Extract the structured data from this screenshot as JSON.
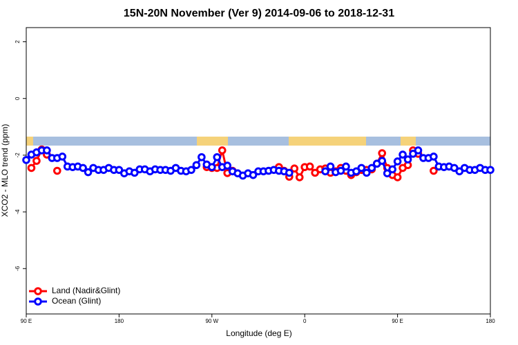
{
  "chart_data": {
    "type": "line",
    "title": "15N-20N November (Ver 9)   2014-09-06 to 2018-12-31",
    "x_label": "Longitude (deg E)",
    "y_label": "XCO2 - MLO trend (ppm)",
    "x": [
      90,
      95,
      100,
      105,
      110,
      115,
      120,
      125,
      130,
      135,
      140,
      145,
      150,
      155,
      160,
      165,
      170,
      175,
      180,
      185,
      190,
      195,
      200,
      205,
      210,
      215,
      220,
      225,
      230,
      235,
      240,
      245,
      250,
      255,
      260,
      265,
      270,
      275,
      280,
      285,
      290,
      295,
      300,
      305,
      310,
      315,
      320,
      325,
      330,
      335,
      340,
      345,
      350,
      355,
      360,
      365,
      370,
      375,
      380,
      385,
      390,
      395,
      400,
      405,
      410,
      415,
      420,
      425,
      430,
      435,
      440,
      445,
      450,
      455,
      460,
      465,
      470,
      475,
      480,
      485,
      490,
      495,
      500,
      505,
      510,
      515,
      520,
      525,
      530,
      535,
      540
    ],
    "xlim": [
      90,
      540
    ],
    "xticks": [
      {
        "value": 90,
        "label": "90 E"
      },
      {
        "value": 180,
        "label": "180"
      },
      {
        "value": 270,
        "label": "90 W"
      },
      {
        "value": 360,
        "label": "0"
      },
      {
        "value": 450,
        "label": "90 E"
      },
      {
        "value": 540,
        "label": "180"
      }
    ],
    "ylim": [
      -7.6,
      2.5
    ],
    "yticks": [
      2,
      0,
      -2,
      -4,
      -6
    ],
    "legend": "bottom-left",
    "series": [
      {
        "name": "Land (Nadir&Glint)",
        "color": "#ff0000",
        "values": [
          null,
          -2.45,
          -2.2,
          -1.8,
          -1.98,
          null,
          -2.55,
          null,
          null,
          null,
          null,
          null,
          null,
          null,
          null,
          null,
          null,
          null,
          null,
          null,
          null,
          null,
          null,
          null,
          null,
          null,
          null,
          null,
          null,
          null,
          null,
          null,
          null,
          null,
          null,
          -2.42,
          -2.45,
          -2.45,
          -1.83,
          -2.63,
          -2.55,
          null,
          null,
          null,
          null,
          null,
          null,
          null,
          null,
          -2.42,
          -2.55,
          -2.76,
          -2.47,
          -2.78,
          -2.42,
          -2.4,
          -2.62,
          -2.5,
          -2.47,
          -2.62,
          -2.57,
          -2.45,
          -2.55,
          -2.7,
          -2.6,
          -2.52,
          -2.52,
          -2.5,
          -2.3,
          -1.93,
          -2.45,
          -2.7,
          -2.78,
          -2.45,
          -2.35,
          -1.83,
          -1.95,
          null,
          null,
          -2.55,
          null,
          null,
          null,
          null,
          null,
          null,
          null,
          null,
          null,
          null,
          null
        ]
      },
      {
        "name": "Ocean (Glint)",
        "color": "#0000ff",
        "values": [
          -2.17,
          -1.98,
          -1.9,
          -1.83,
          -1.83,
          -2.1,
          -2.1,
          -2.05,
          -2.4,
          -2.42,
          -2.4,
          -2.45,
          -2.6,
          -2.45,
          -2.52,
          -2.52,
          -2.45,
          -2.52,
          -2.52,
          -2.64,
          -2.57,
          -2.62,
          -2.5,
          -2.5,
          -2.57,
          -2.5,
          -2.52,
          -2.52,
          -2.55,
          -2.45,
          -2.55,
          -2.57,
          -2.52,
          -2.35,
          -2.07,
          -2.33,
          -2.42,
          -2.07,
          -2.42,
          -2.37,
          -2.57,
          -2.64,
          -2.72,
          -2.64,
          -2.7,
          -2.57,
          -2.57,
          -2.55,
          -2.52,
          -2.55,
          -2.57,
          -2.62,
          null,
          null,
          null,
          null,
          null,
          null,
          -2.57,
          -2.4,
          -2.6,
          -2.55,
          -2.4,
          -2.62,
          -2.57,
          -2.45,
          -2.62,
          -2.45,
          -2.3,
          -2.2,
          -2.64,
          -2.5,
          -2.22,
          -1.98,
          -2.15,
          -1.95,
          -1.83,
          -2.1,
          -2.1,
          -2.05,
          -2.4,
          -2.42,
          -2.4,
          -2.45,
          -2.57,
          -2.45,
          -2.52,
          -2.52,
          -2.45,
          -2.52,
          -2.52
        ]
      }
    ]
  }
}
